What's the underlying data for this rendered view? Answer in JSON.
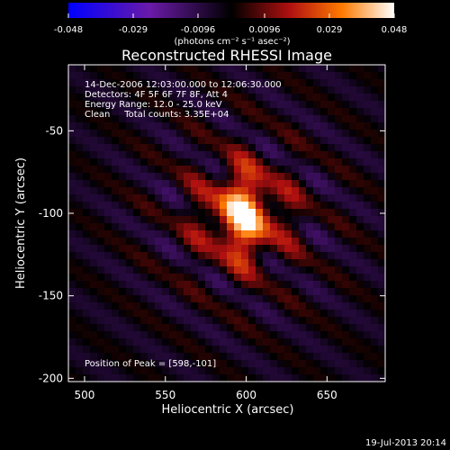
{
  "chart_data": {
    "type": "heatmap",
    "title": "Reconstructed RHESSI Image",
    "xlabel": "Heliocentric X (arcsec)",
    "ylabel": "Heliocentric Y (arcsec)",
    "xlim": [
      490,
      686
    ],
    "ylim": [
      -202,
      -10
    ],
    "x_ticks": [
      500,
      550,
      600,
      650
    ],
    "y_ticks": [
      -50,
      -100,
      -150,
      -200
    ],
    "colorbar": {
      "ticks": [
        "-0.048",
        "-0.029",
        "-0.0096",
        "0.0096",
        "0.029",
        "0.048"
      ],
      "units_label": "(photons cm⁻² s⁻¹ asec⁻²)",
      "range": [
        -0.048,
        0.048
      ]
    },
    "info_lines": [
      "14-Dec-2006 12:03:00.000 to 12:06:30.000",
      "Detectors: 4F 5F 6F 7F 8F, Att 4",
      "Energy Range: 12.0 - 25.0 keV",
      "Clean     Total counts: 3.35E+04"
    ],
    "peak_text": "Position of Peak = [598,-101]",
    "peak": {
      "x": 598,
      "y": -101,
      "value": 0.048
    }
  },
  "footer": {
    "date": "19-Jul-2013 20:14"
  }
}
